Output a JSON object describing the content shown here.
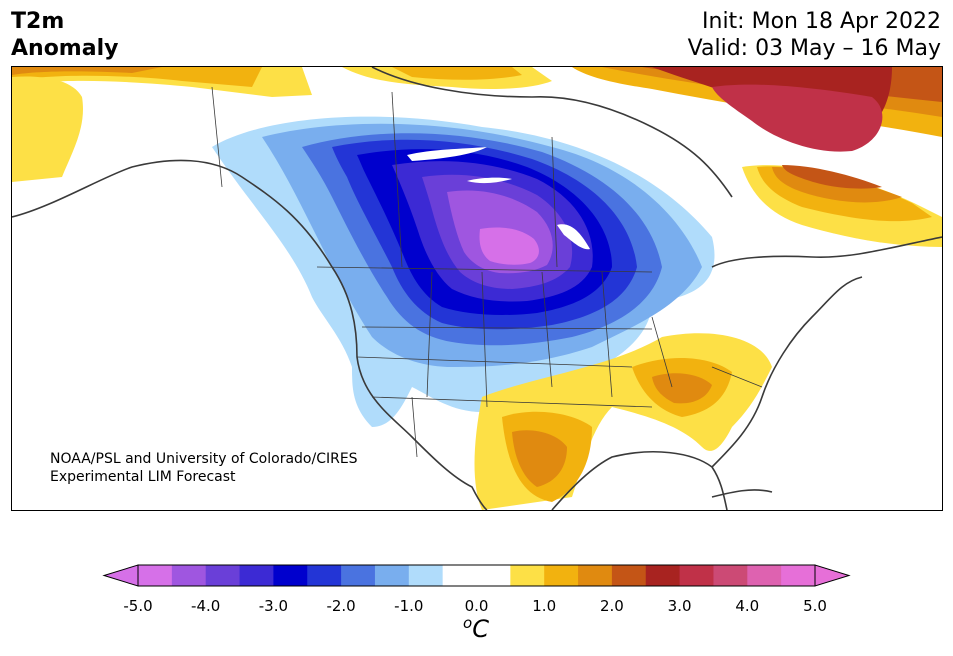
{
  "title": {
    "variable": "T2m",
    "subtitle": "Anomaly",
    "init": "Init: Mon 18 Apr 2022",
    "valid": "Valid: 03 May – 16 May"
  },
  "credit": {
    "line1": "NOAA/PSL and University of Colorado/CIRES",
    "line2": "Experimental LIM Forecast"
  },
  "colorbar": {
    "ticks": [
      "-5.0",
      "-4.0",
      "-3.0",
      "-2.0",
      "-1.0",
      "0.0",
      "1.0",
      "2.0",
      "3.0",
      "4.0",
      "5.0"
    ],
    "units_base": "C",
    "units_sup": "o",
    "colors": [
      "#d670e8",
      "#9f56e0",
      "#6a3fd8",
      "#3c2ad4",
      "#0000cd",
      "#2335d6",
      "#4a73e0",
      "#79aeee",
      "#b0dcfb",
      "#ffffff",
      "#ffffff",
      "#fde046",
      "#f2b20f",
      "#e08a10",
      "#c45516",
      "#a82320",
      "#c03148",
      "#cc4a75",
      "#de62b0",
      "#e66fd8"
    ],
    "under_color": "#d670e8",
    "over_color": "#e66fd8"
  }
}
